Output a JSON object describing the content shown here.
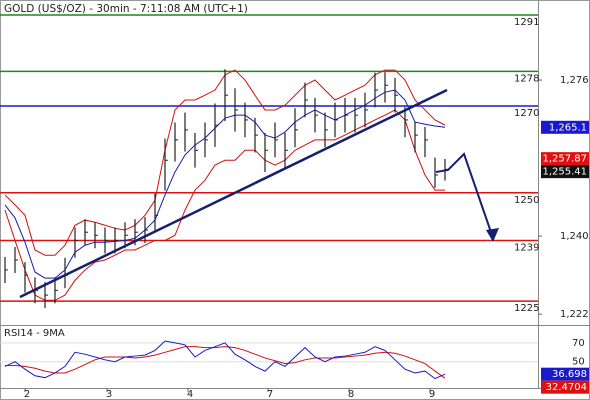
{
  "chart_data": {
    "type": "ohlc",
    "title": "GOLD (US$/OZ) - 30min - 7:11:08 AM (UTC+1)",
    "x": [
      0,
      1,
      2,
      3,
      4,
      5,
      6,
      7,
      8,
      9,
      10,
      11,
      12,
      13,
      14,
      15,
      16,
      17,
      18,
      19,
      20,
      21,
      22,
      23,
      24,
      25,
      26,
      27,
      28,
      29,
      30,
      31,
      32,
      33,
      34,
      35,
      36,
      37,
      38,
      39,
      40,
      41,
      42,
      43,
      44
    ],
    "high": [
      1235.2,
      1237.5,
      1234.0,
      1230.5,
      1229.4,
      1230.5,
      1235.0,
      1242.0,
      1243.9,
      1243.2,
      1242.0,
      1242.0,
      1243.2,
      1243.9,
      1244.4,
      1249.8,
      1262.5,
      1266.2,
      1268.5,
      1263.8,
      1266.2,
      1270.6,
      1278.5,
      1274.1,
      1270.8,
      1267.3,
      1263.8,
      1266.2,
      1263.8,
      1269.5,
      1275.4,
      1271.9,
      1268.5,
      1270.8,
      1271.9,
      1271.9,
      1273.1,
      1277.7,
      1277.8,
      1276.5,
      1269.8,
      1266.3,
      1265.2,
      1258.1,
      1257.8
    ],
    "low": [
      1229.2,
      1231.5,
      1227.0,
      1224.5,
      1223.4,
      1224.5,
      1228.0,
      1235.0,
      1237.9,
      1237.2,
      1236.0,
      1236.0,
      1237.2,
      1237.9,
      1238.4,
      1240.8,
      1250.5,
      1257.2,
      1259.5,
      1255.8,
      1258.2,
      1260.6,
      1266.5,
      1264.1,
      1262.8,
      1259.3,
      1254.8,
      1258.2,
      1255.8,
      1260.5,
      1267.4,
      1263.9,
      1260.5,
      1262.8,
      1263.9,
      1263.9,
      1265.1,
      1269.7,
      1270.8,
      1268.5,
      1262.8,
      1259.3,
      1258.2,
      1251.1,
      1252.8
    ],
    "close": [
      1232.2,
      1234.5,
      1231.0,
      1227.5,
      1226.4,
      1227.5,
      1231.0,
      1239.0,
      1240.9,
      1240.2,
      1239.0,
      1239.0,
      1240.2,
      1240.9,
      1241.4,
      1244.8,
      1257.5,
      1262.2,
      1264.5,
      1259.8,
      1262.2,
      1265.6,
      1272.5,
      1269.1,
      1266.8,
      1263.3,
      1259.8,
      1262.2,
      1259.8,
      1264.5,
      1271.4,
      1267.9,
      1264.5,
      1266.8,
      1267.9,
      1267.9,
      1269.1,
      1273.7,
      1274.8,
      1272.5,
      1266.8,
      1263.3,
      1262.2,
      1254.1,
      1255.4
    ],
    "bar_color": "#222222",
    "bands": {
      "band_color": "#d01010",
      "middle_color": "#1a1aa8",
      "upper": [
        1249.5,
        1247.2,
        1244.8,
        1236.8,
        1235.6,
        1235.6,
        1237.9,
        1242.5,
        1243.7,
        1243.2,
        1242.5,
        1241.8,
        1241.4,
        1242.5,
        1244.8,
        1248.3,
        1259.8,
        1269.1,
        1271.4,
        1271.4,
        1272.5,
        1273.7,
        1277.2,
        1278.3,
        1276.0,
        1272.5,
        1269.1,
        1269.1,
        1270.2,
        1272.5,
        1274.8,
        1276.0,
        1273.7,
        1271.4,
        1272.5,
        1273.7,
        1274.8,
        1277.2,
        1278.3,
        1278.3,
        1276.0,
        1271.4,
        1269.1,
        1266.8,
        1265.6
      ],
      "middle": [
        1247.2,
        1244.2,
        1238.6,
        1231.7,
        1230.3,
        1230.3,
        1232.2,
        1236.3,
        1237.9,
        1238.6,
        1238.6,
        1238.8,
        1239.0,
        1239.5,
        1241.4,
        1243.7,
        1249.5,
        1254.8,
        1258.7,
        1261.0,
        1262.6,
        1264.9,
        1267.2,
        1267.9,
        1267.9,
        1266.3,
        1263.3,
        1262.6,
        1264.0,
        1266.3,
        1267.9,
        1269.1,
        1267.9,
        1266.8,
        1267.9,
        1269.1,
        1270.2,
        1271.8,
        1273.2,
        1273.7,
        1271.4,
        1266.3,
        1265.8,
        1265.4,
        1265.1
      ],
      "lower": [
        1246.0,
        1239.0,
        1232.2,
        1226.4,
        1225.2,
        1225.2,
        1226.4,
        1229.8,
        1232.2,
        1234.0,
        1234.5,
        1235.6,
        1236.8,
        1236.8,
        1237.9,
        1239.0,
        1239.0,
        1240.2,
        1246.0,
        1250.6,
        1252.9,
        1256.4,
        1257.5,
        1257.5,
        1259.8,
        1259.8,
        1257.5,
        1256.4,
        1257.5,
        1259.8,
        1261.0,
        1262.2,
        1262.2,
        1262.2,
        1263.3,
        1264.5,
        1265.6,
        1266.8,
        1267.9,
        1269.1,
        1266.8,
        1259.8,
        1254.1,
        1250.6,
        1250.6
      ]
    },
    "xlim": [
      -0.5,
      53.3
    ],
    "xticks": [
      {
        "value": 2,
        "label": "2"
      },
      {
        "value": 10.2,
        "label": "3"
      },
      {
        "value": 18.3,
        "label": "4"
      },
      {
        "value": 26.3,
        "label": "7"
      },
      {
        "value": 34.4,
        "label": "8"
      },
      {
        "value": 42.5,
        "label": "9"
      }
    ],
    "ylim": [
      1219.5,
      1294
    ],
    "yticks": [
      {
        "value": 1222,
        "label": "1,222"
      },
      {
        "value": 1240,
        "label": "1,240"
      },
      {
        "value": 1276,
        "label": "1,276"
      }
    ],
    "levels": [
      {
        "value": 1291,
        "color": "#1a8a1a"
      },
      {
        "value": 1278,
        "color": "#1a8a1a"
      },
      {
        "value": 1270,
        "color": "#1a1acc"
      },
      {
        "value": 1250,
        "color": "#e01010"
      },
      {
        "value": 1239,
        "color": "#e01010"
      },
      {
        "value": 1225,
        "color": "#e01010"
      }
    ],
    "badges": [
      {
        "value": 1265.1,
        "label": "1,265.1",
        "color": "#1a1acc"
      },
      {
        "value": 1257.87,
        "label": "1,257.87",
        "color": "#e01010"
      },
      {
        "value": 1255.41,
        "label": "1,255.41",
        "color": "#111111"
      }
    ],
    "rsi": {
      "title": "RSI14 - 9MA",
      "ylim": [
        22,
        88
      ],
      "yticks": [
        50,
        70
      ],
      "color": "#1a1acc",
      "ma_color": "#d01010",
      "values": [
        45,
        50,
        42,
        35,
        33,
        38,
        45,
        60,
        58,
        55,
        52,
        50,
        55,
        56,
        57,
        62,
        72,
        70,
        68,
        55,
        62,
        66,
        70,
        58,
        52,
        45,
        40,
        50,
        45,
        55,
        65,
        55,
        50,
        55,
        56,
        58,
        60,
        66,
        62,
        52,
        42,
        38,
        40,
        32,
        36.698
      ],
      "ma": [
        46,
        46,
        45,
        43,
        40,
        38,
        38,
        42,
        47,
        52,
        55,
        55,
        55,
        54,
        55,
        57,
        60,
        63,
        66,
        66,
        65,
        65,
        66,
        65,
        62,
        58,
        54,
        51,
        48,
        49,
        52,
        54,
        54,
        54,
        55,
        56,
        57,
        59,
        60,
        59,
        56,
        52,
        48,
        40,
        32.4704
      ],
      "badges": [
        {
          "value": 36.698,
          "label": "36.698",
          "color": "#1a1acc"
        },
        {
          "value": 32.4704,
          "label": "32.4704",
          "color": "#e01010"
        }
      ]
    }
  }
}
